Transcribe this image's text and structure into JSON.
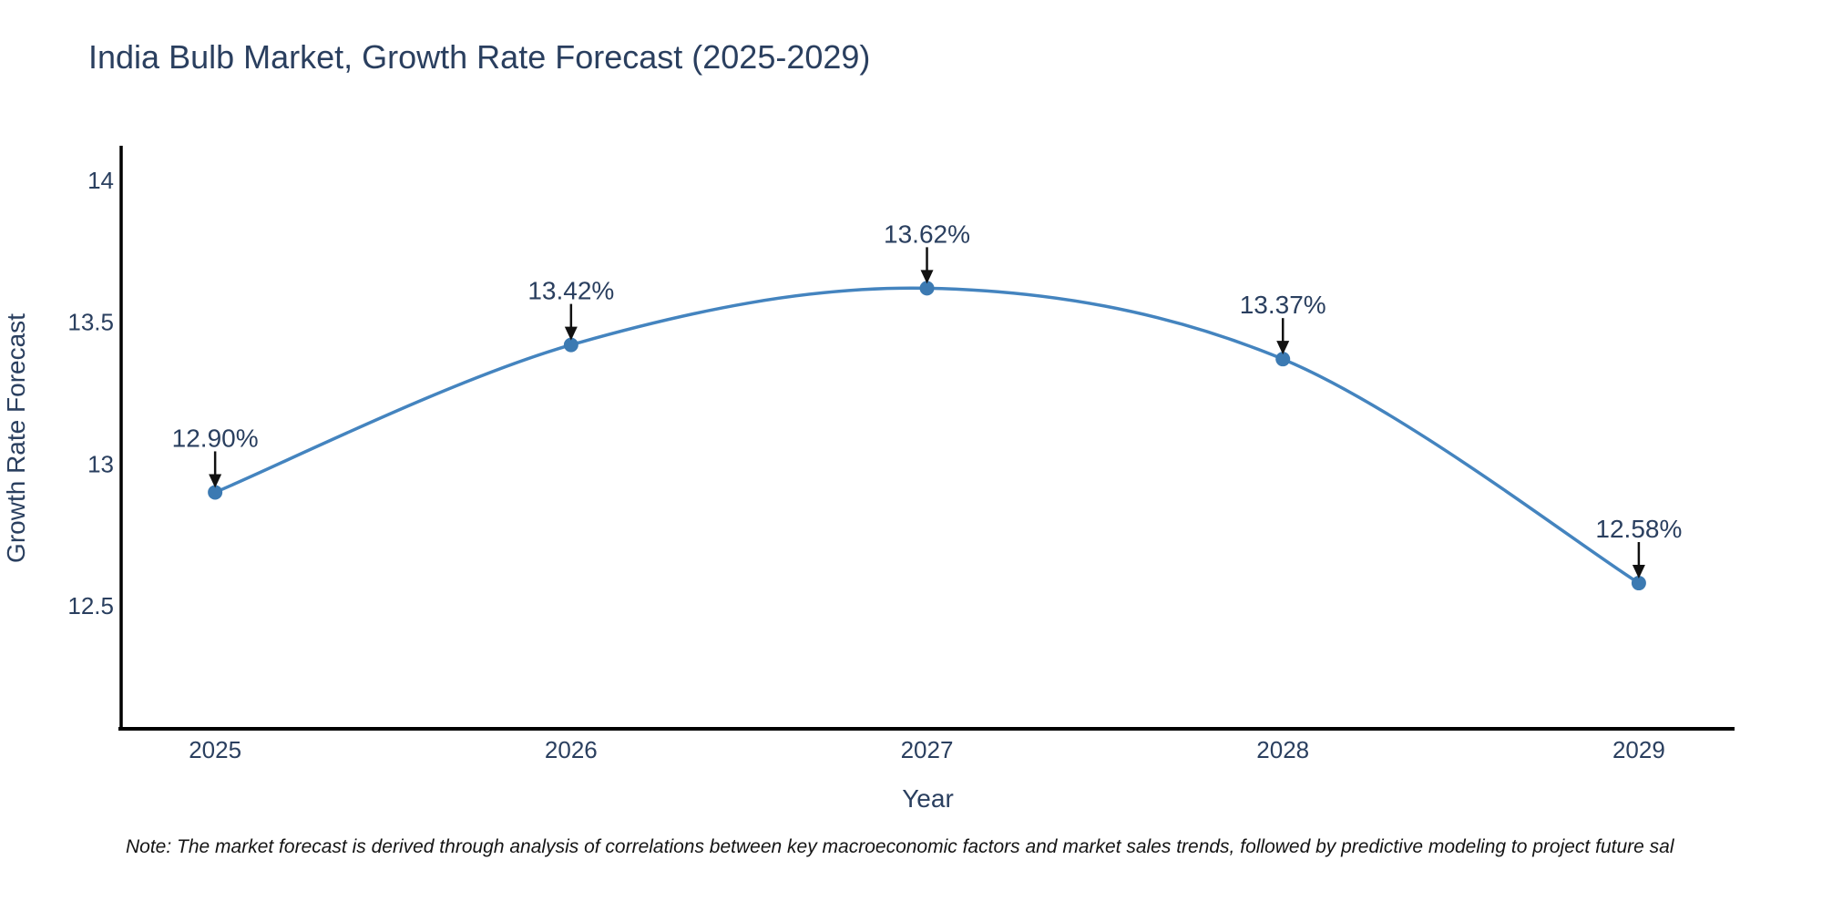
{
  "chart_data": {
    "type": "line",
    "title": "India Bulb Market, Growth Rate Forecast (2025-2029)",
    "xlabel": "Year",
    "ylabel": "Growth Rate Forecast",
    "x": [
      2025,
      2026,
      2027,
      2028,
      2029
    ],
    "y": [
      12.9,
      13.42,
      13.62,
      13.37,
      12.58
    ],
    "point_labels": [
      "12.90%",
      "13.42%",
      "13.62%",
      "13.37%",
      "12.58%"
    ],
    "xticks": {
      "values": [
        2025,
        2026,
        2027,
        2028,
        2029
      ],
      "labels": [
        "2025",
        "2026",
        "2027",
        "2028",
        "2029"
      ]
    },
    "yticks": {
      "values": [
        12.5,
        13,
        13.5,
        14
      ],
      "labels": [
        "12.5",
        "13",
        "13.5",
        "14"
      ]
    },
    "xlim": [
      2024.736,
      2029.269
    ],
    "ylim": [
      12.066,
      14.116
    ],
    "line_shape": "spline",
    "grid": false,
    "legend_position": "none",
    "colors": {
      "line": "#4484bf",
      "marker": "#3c7ab2",
      "annotation_arrow": "#111111",
      "text": "#2a3f5f",
      "axis": "#000000"
    },
    "note": "Note: The market forecast is derived through analysis of correlations between key macroeconomic factors and market sales trends, followed by predictive modeling to project future sal"
  }
}
